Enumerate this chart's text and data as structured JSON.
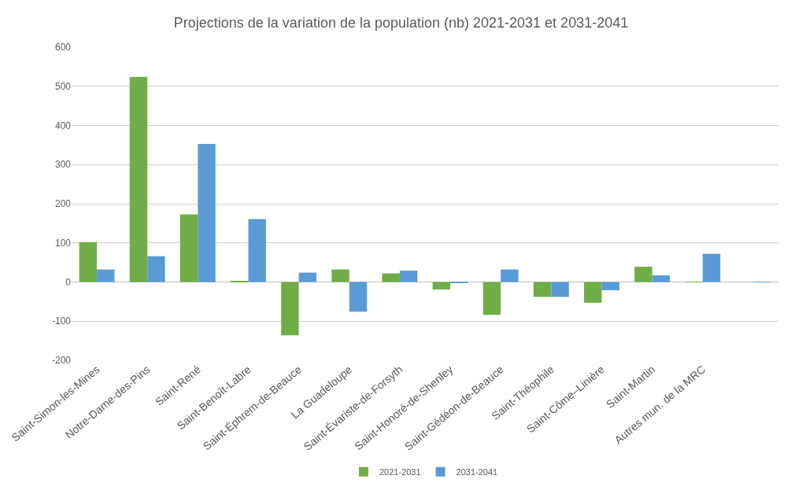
{
  "chart_data": {
    "type": "bar",
    "title": "Projections de la variation de la population (nb) 2021-2031 et 2031-2041",
    "categories": [
      "Saint-Simon-les-Mines",
      "Notre-Dame-des-Pins",
      "Saint-René",
      "Saint-Benoît-Labre",
      "Saint-Éphrem-de-Beauce",
      "La Guadeloupe",
      "Saint-Évariste-de-Forsyth",
      "Saint-Honoré-de-Shenley",
      "Saint-Gédéon-de-Beauce",
      "Saint-Théophile",
      "Saint-Côme–Linière",
      "Saint-Martin",
      "Autres mun. de la MRC",
      null
    ],
    "series": [
      {
        "name": "2021-2031",
        "color": "#70ad47",
        "values": [
          102,
          524,
          173,
          3,
          -136,
          32,
          22,
          -19,
          -84,
          -38,
          -53,
          39,
          -1,
          null
        ]
      },
      {
        "name": "2031-2041",
        "color": "#5b9bd5",
        "values": [
          32,
          66,
          353,
          161,
          24,
          -76,
          29,
          -2,
          32,
          -38,
          -21,
          17,
          72,
          1
        ]
      }
    ],
    "ylim": [
      -200,
      600
    ],
    "yticks": [
      -200,
      -100,
      0,
      100,
      200,
      300,
      400,
      500,
      600
    ],
    "grid": "y",
    "legend": "bottom"
  }
}
